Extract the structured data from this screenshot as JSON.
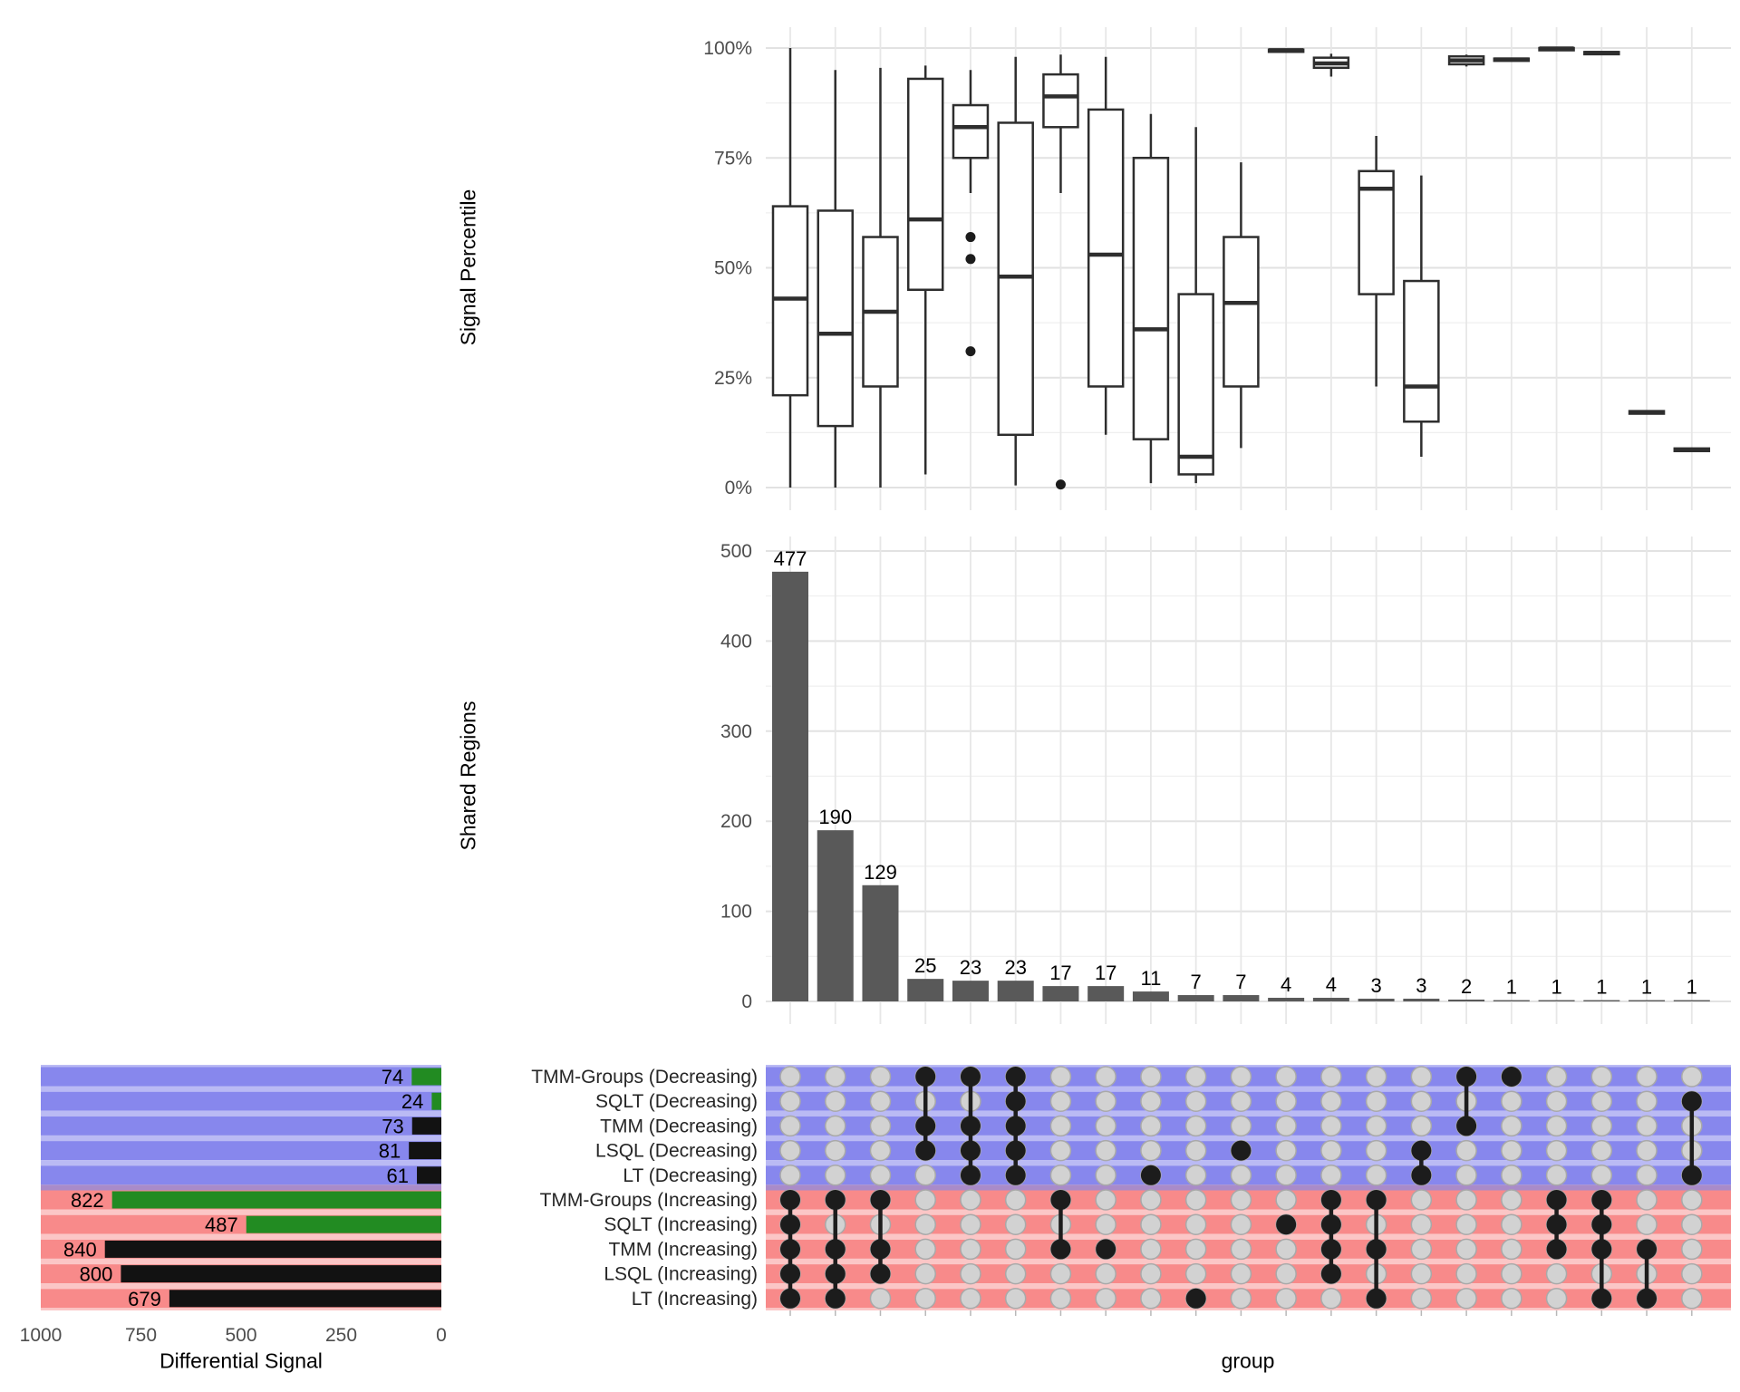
{
  "colors": {
    "green": "#228B22",
    "black_bar": "#121212",
    "bar_grey": "#595959",
    "band_blue": "#8787ed",
    "band_blue_light": "#babaf4",
    "band_red": "#f88a8a",
    "band_red_light": "#fbc6c6",
    "band_purple": "#a98bc9",
    "dot_grey": "#d2d2d2",
    "dot_grey_border": "#a9a9a9",
    "dot_black": "#1c1c1c",
    "box_stroke": "#2e2e2e",
    "tick_text": "#4d4d4d",
    "label_text": "#262626",
    "grid_major": "#e2e2e2",
    "grid_minor": "#efefef",
    "grid_vert": "#e7e7e7"
  },
  "chart_data": [
    {
      "id": "signal_percentile",
      "type": "boxplot",
      "ylabel": "Signal Percentile",
      "ytick_labels": [
        "0%",
        "25%",
        "50%",
        "75%",
        "100%"
      ],
      "ylim": [
        0,
        100
      ],
      "grid": true,
      "boxes": [
        {
          "min": 0,
          "q1": 21,
          "median": 43,
          "q3": 64,
          "max": 100,
          "outliers": []
        },
        {
          "min": 0,
          "q1": 14,
          "median": 35,
          "q3": 63,
          "max": 95,
          "outliers": []
        },
        {
          "min": 0,
          "q1": 23,
          "median": 40,
          "q3": 57,
          "max": 95.5,
          "outliers": []
        },
        {
          "min": 3,
          "q1": 45,
          "median": 61,
          "q3": 93,
          "max": 96,
          "outliers": []
        },
        {
          "min": 67,
          "q1": 75,
          "median": 82,
          "q3": 87,
          "max": 95,
          "outliers": [
            57,
            52,
            31
          ]
        },
        {
          "min": 0.5,
          "q1": 12,
          "median": 48,
          "q3": 83,
          "max": 98,
          "outliers": []
        },
        {
          "min": 67,
          "q1": 82,
          "median": 89,
          "q3": 94,
          "max": 98.5,
          "outliers": [
            0.7
          ]
        },
        {
          "min": 12,
          "q1": 23,
          "median": 53,
          "q3": 86,
          "max": 98,
          "outliers": []
        },
        {
          "min": 1,
          "q1": 11,
          "median": 36,
          "q3": 75,
          "max": 85,
          "outliers": []
        },
        {
          "min": 1,
          "q1": 3,
          "median": 7,
          "q3": 44,
          "max": 82,
          "outliers": []
        },
        {
          "min": 9,
          "q1": 23,
          "median": 42,
          "q3": 57,
          "max": 74,
          "outliers": []
        },
        {
          "min": 99.2,
          "q1": 99.35,
          "median": 99.5,
          "q3": 99.65,
          "max": 99.8,
          "outliers": []
        },
        {
          "min": 93.5,
          "q1": 95.5,
          "median": 96.5,
          "q3": 97.8,
          "max": 98.7,
          "outliers": []
        },
        {
          "min": 23,
          "q1": 44,
          "median": 68,
          "q3": 72,
          "max": 80,
          "outliers": []
        },
        {
          "min": 7,
          "q1": 15,
          "median": 23,
          "q3": 47,
          "max": 71,
          "outliers": []
        },
        {
          "min": 95.8,
          "q1": 96.3,
          "median": 97.2,
          "q3": 98.1,
          "max": 98.5,
          "outliers": []
        },
        {
          "min": 97.1,
          "q1": 97.2,
          "median": 97.4,
          "q3": 97.6,
          "max": 97.7,
          "outliers": []
        },
        {
          "min": 99.6,
          "q1": 99.75,
          "median": 99.9,
          "q3": 100,
          "max": 100,
          "outliers": []
        },
        {
          "min": 98.4,
          "q1": 98.6,
          "median": 98.9,
          "q3": 99.1,
          "max": 99.3,
          "outliers": []
        },
        {
          "min": 16.6,
          "q1": 16.8,
          "median": 17.1,
          "q3": 17.4,
          "max": 17.6,
          "outliers": []
        },
        {
          "min": 8.1,
          "q1": 8.3,
          "median": 8.6,
          "q3": 8.9,
          "max": 9.1,
          "outliers": []
        }
      ]
    },
    {
      "id": "shared_regions",
      "type": "bar",
      "ylabel": "Shared Regions",
      "ytick_labels": [
        "0",
        "100",
        "200",
        "300",
        "400",
        "500"
      ],
      "ylim": [
        0,
        500
      ],
      "grid": true,
      "values": [
        477,
        190,
        129,
        25,
        23,
        23,
        17,
        17,
        11,
        7,
        7,
        4,
        4,
        3,
        3,
        2,
        1,
        1,
        1,
        1,
        1
      ],
      "value_labels": [
        "477",
        "190",
        "129",
        "25",
        "23",
        "23",
        "17",
        "17",
        "11",
        "7",
        "7",
        "4",
        "4",
        "3",
        "3",
        "2",
        "1",
        "1",
        "1",
        "1",
        "1"
      ]
    },
    {
      "id": "differential_signal",
      "type": "bar_horizontal",
      "xlabel": "Differential Signal",
      "xtick_labels": [
        "1000",
        "750",
        "500",
        "250",
        "0"
      ],
      "xlim": [
        1000,
        0
      ],
      "grid": false,
      "bars": [
        {
          "value": 74,
          "label": "74",
          "color": "green"
        },
        {
          "value": 24,
          "label": "24",
          "color": "green"
        },
        {
          "value": 73,
          "label": "73",
          "color": "black"
        },
        {
          "value": 81,
          "label": "81",
          "color": "black"
        },
        {
          "value": 61,
          "label": "61",
          "color": "black"
        },
        {
          "value": 822,
          "label": "822",
          "color": "green"
        },
        {
          "value": 487,
          "label": "487",
          "color": "green"
        },
        {
          "value": 840,
          "label": "840",
          "color": "black"
        },
        {
          "value": 800,
          "label": "800",
          "color": "black"
        },
        {
          "value": 679,
          "label": "679",
          "color": "black"
        }
      ]
    },
    {
      "id": "upset_matrix",
      "type": "membership_matrix",
      "xlabel": "group",
      "row_labels": [
        "TMM-Groups (Decreasing)",
        "SQLT (Decreasing)",
        "TMM (Decreasing)",
        "LSQL (Decreasing)",
        "LT (Decreasing)",
        "TMM-Groups (Increasing)",
        "SQLT (Increasing)",
        "TMM (Increasing)",
        "LSQL (Increasing)",
        "LT (Increasing)"
      ],
      "row_sections": [
        "decreasing",
        "decreasing",
        "decreasing",
        "decreasing",
        "decreasing",
        "increasing",
        "increasing",
        "increasing",
        "increasing",
        "increasing"
      ],
      "columns": [
        [
          6,
          7,
          8,
          9,
          10
        ],
        [
          6,
          8,
          9,
          10
        ],
        [
          6,
          8,
          9
        ],
        [
          1,
          3,
          4
        ],
        [
          1,
          3,
          4,
          5
        ],
        [
          1,
          2,
          3,
          4,
          5
        ],
        [
          6,
          8
        ],
        [
          8
        ],
        [
          5
        ],
        [
          10
        ],
        [
          4
        ],
        [
          7
        ],
        [
          6,
          7,
          8,
          9
        ],
        [
          6,
          8,
          10
        ],
        [
          4,
          5
        ],
        [
          1,
          3
        ],
        [
          1
        ],
        [
          6,
          7,
          8
        ],
        [
          6,
          7,
          8,
          10
        ],
        [
          8,
          10
        ],
        [
          2,
          5
        ]
      ]
    }
  ]
}
